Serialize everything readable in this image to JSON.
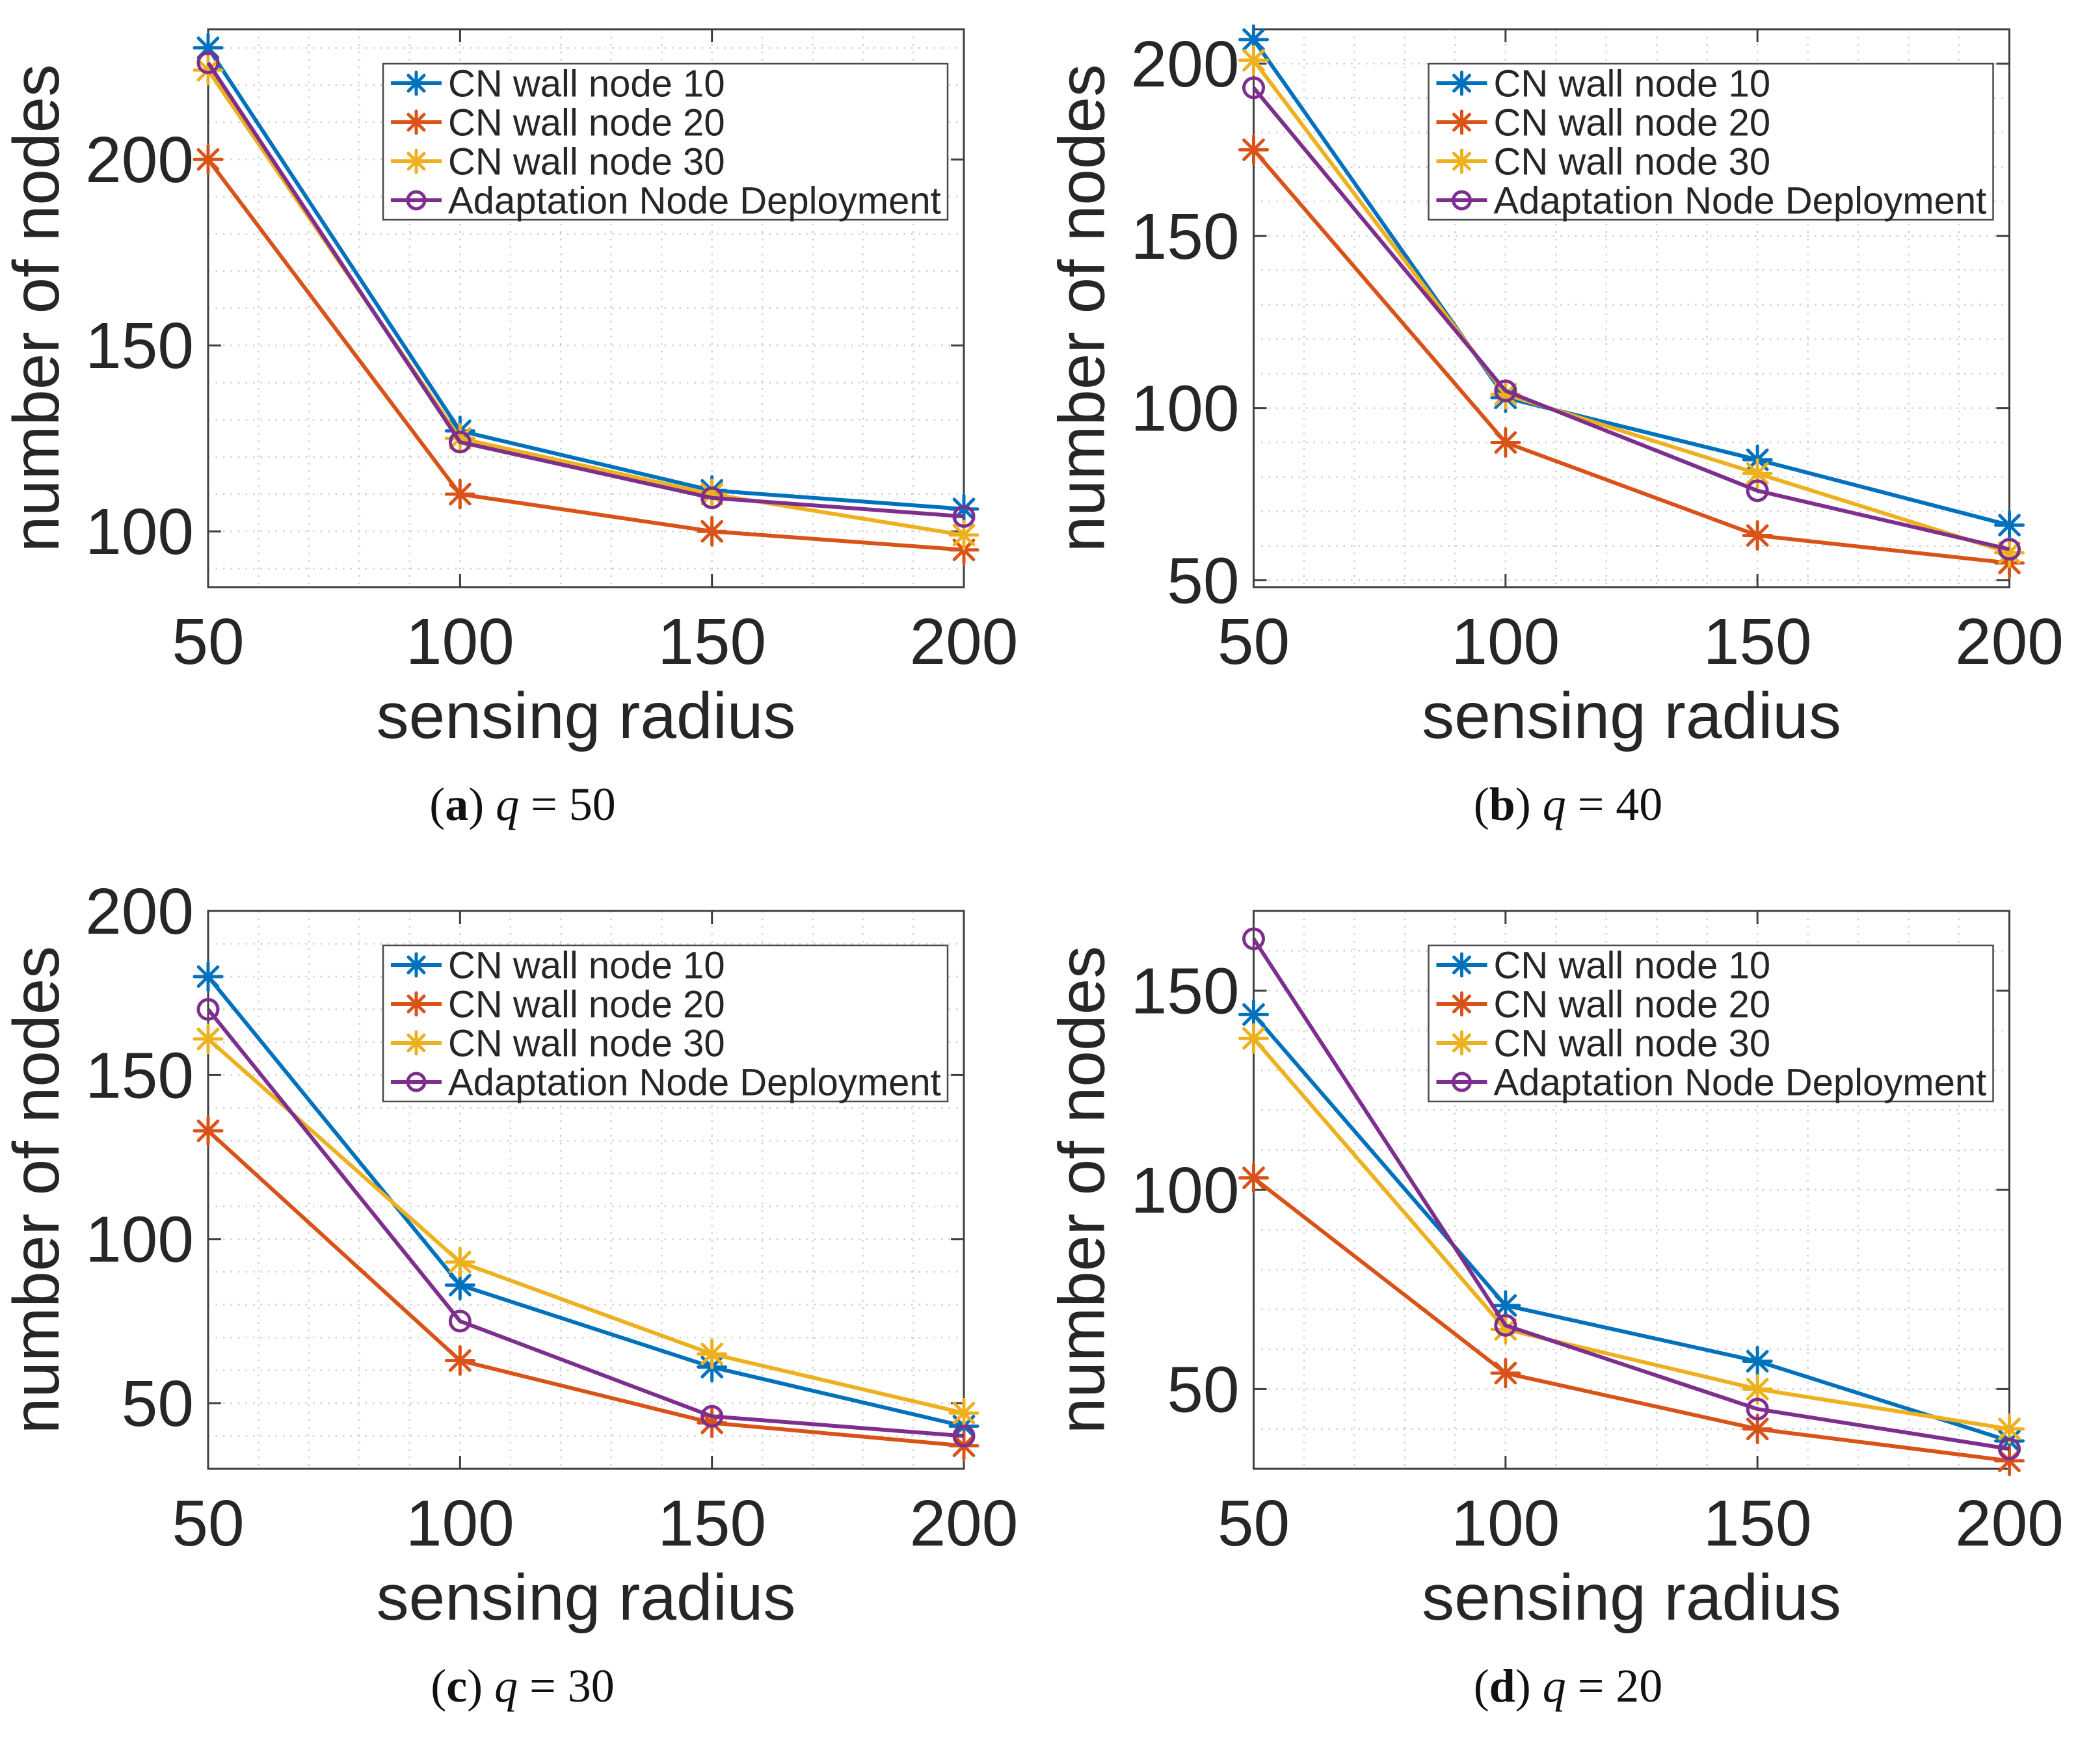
{
  "figure": {
    "background": "#ffffff",
    "text_color": "#262626",
    "grid_color": "#cfcfcf",
    "axis_color": "#3f3f3f"
  },
  "chart_data": [
    {
      "id": "a",
      "type": "line",
      "xlabel": "sensing radius",
      "ylabel": "number of nodes",
      "x": [
        50,
        100,
        150,
        200
      ],
      "xlim": [
        50,
        200
      ],
      "ylim": [
        85,
        235
      ],
      "xticks": [
        50,
        100,
        150,
        200
      ],
      "yticks": [
        100,
        150,
        200
      ],
      "minor_step": 10,
      "grid": "dotted-minor",
      "legend_position": "top-right-inside",
      "caption": {
        "open": "(",
        "letter": "a",
        "close": ") ",
        "var": "q",
        "rest": " = 50"
      },
      "series": [
        {
          "name": "CN wall node 10",
          "color": "#0072BD",
          "marker": "asterisk",
          "values": [
            230,
            127,
            111,
            106
          ]
        },
        {
          "name": "CN wall node 20",
          "color": "#D95319",
          "marker": "asterisk",
          "values": [
            200,
            110,
            100,
            95
          ]
        },
        {
          "name": "CN wall node 30",
          "color": "#EDB120",
          "marker": "asterisk",
          "values": [
            224,
            125,
            110,
            99
          ]
        },
        {
          "name": "Adaptation Node Deployment",
          "color": "#7E2F8E",
          "marker": "circle",
          "values": [
            226,
            124,
            109,
            104
          ]
        }
      ]
    },
    {
      "id": "b",
      "type": "line",
      "xlabel": "sensing radius",
      "ylabel": "number of nodes",
      "x": [
        50,
        100,
        150,
        200
      ],
      "xlim": [
        50,
        200
      ],
      "ylim": [
        48,
        210
      ],
      "xticks": [
        50,
        100,
        150,
        200
      ],
      "yticks": [
        50,
        100,
        150,
        200
      ],
      "minor_step": 10,
      "grid": "dotted-minor",
      "legend_position": "top-right-inside",
      "caption": {
        "open": "(",
        "letter": "b",
        "close": ") ",
        "var": "q",
        "rest": " = 40"
      },
      "series": [
        {
          "name": "CN wall node 10",
          "color": "#0072BD",
          "marker": "asterisk",
          "values": [
            207,
            103,
            85,
            66
          ]
        },
        {
          "name": "CN wall node 20",
          "color": "#D95319",
          "marker": "asterisk",
          "values": [
            175,
            90,
            63,
            55
          ]
        },
        {
          "name": "CN wall node 30",
          "color": "#EDB120",
          "marker": "asterisk",
          "values": [
            201,
            104,
            81,
            58
          ]
        },
        {
          "name": "Adaptation Node Deployment",
          "color": "#7E2F8E",
          "marker": "circle",
          "values": [
            193,
            105,
            76,
            59
          ]
        }
      ]
    },
    {
      "id": "c",
      "type": "line",
      "xlabel": "sensing radius",
      "ylabel": "number of nodes",
      "x": [
        50,
        100,
        150,
        200
      ],
      "xlim": [
        50,
        200
      ],
      "ylim": [
        30,
        200
      ],
      "xticks": [
        50,
        100,
        150,
        200
      ],
      "yticks": [
        50,
        100,
        150,
        200
      ],
      "minor_step": 10,
      "grid": "dotted-minor",
      "legend_position": "top-right-inside",
      "caption": {
        "open": "(",
        "letter": "c",
        "close": ") ",
        "var": "q",
        "rest": " = 30"
      },
      "series": [
        {
          "name": "CN wall node 10",
          "color": "#0072BD",
          "marker": "asterisk",
          "values": [
            180,
            86,
            61,
            43
          ]
        },
        {
          "name": "CN wall node 20",
          "color": "#D95319",
          "marker": "asterisk",
          "values": [
            133,
            63,
            44,
            37
          ]
        },
        {
          "name": "CN wall node 30",
          "color": "#EDB120",
          "marker": "asterisk",
          "values": [
            161,
            93,
            65,
            47
          ]
        },
        {
          "name": "Adaptation Node Deployment",
          "color": "#7E2F8E",
          "marker": "circle",
          "values": [
            170,
            75,
            46,
            40
          ]
        }
      ]
    },
    {
      "id": "d",
      "type": "line",
      "xlabel": "sensing radius",
      "ylabel": "number of nodes",
      "x": [
        50,
        100,
        150,
        200
      ],
      "xlim": [
        50,
        200
      ],
      "ylim": [
        30,
        170
      ],
      "xticks": [
        50,
        100,
        150,
        200
      ],
      "yticks": [
        50,
        100,
        150
      ],
      "minor_step": 10,
      "grid": "dotted-minor",
      "legend_position": "top-right-inside",
      "caption": {
        "open": "(",
        "letter": "d",
        "close": ") ",
        "var": "q",
        "rest": " = 20"
      },
      "series": [
        {
          "name": "CN wall node 10",
          "color": "#0072BD",
          "marker": "asterisk",
          "values": [
            144,
            71,
            57,
            37
          ]
        },
        {
          "name": "CN wall node 20",
          "color": "#D95319",
          "marker": "asterisk",
          "values": [
            103,
            54,
            40,
            32
          ]
        },
        {
          "name": "CN wall node 30",
          "color": "#EDB120",
          "marker": "asterisk",
          "values": [
            138,
            65,
            50,
            40
          ]
        },
        {
          "name": "Adaptation Node Deployment",
          "color": "#7E2F8E",
          "marker": "circle",
          "values": [
            163,
            66,
            45,
            35
          ]
        }
      ]
    }
  ]
}
